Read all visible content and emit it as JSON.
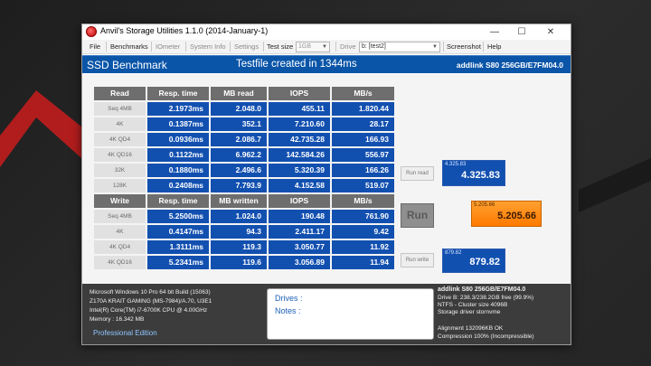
{
  "window": {
    "title": "Anvil's Storage Utilities 1.1.0 (2014-January-1)",
    "controls": {
      "minimize": "—",
      "maximize": "☐",
      "close": "✕"
    }
  },
  "menu": {
    "file": "File",
    "benchmarks": "Benchmarks",
    "iometer": "IOmeter",
    "system_info": "System Info",
    "settings": "Settings",
    "test_size_label": "Test size",
    "test_size_value": "1GB",
    "drive_label": "Drive",
    "drive_value": "b: [test2]",
    "screenshot": "Screenshot",
    "help": "Help"
  },
  "header": {
    "title": "SSD Benchmark",
    "status": "Testfile created in 1344ms",
    "device": "addlink S80 256GB/E7FM04.0"
  },
  "read_table": {
    "headers": [
      "Read",
      "Resp. time",
      "MB read",
      "IOPS",
      "MB/s"
    ],
    "rows": [
      {
        "label": "Seq 4MB",
        "resp": "2.1973ms",
        "mb": "2.048.0",
        "iops": "455.11",
        "mbs": "1.820.44"
      },
      {
        "label": "4K",
        "resp": "0.1387ms",
        "mb": "352.1",
        "iops": "7.210.60",
        "mbs": "28.17"
      },
      {
        "label": "4K QD4",
        "resp": "0.0936ms",
        "mb": "2.086.7",
        "iops": "42.735.28",
        "mbs": "166.93"
      },
      {
        "label": "4K QD16",
        "resp": "0.1122ms",
        "mb": "6.962.2",
        "iops": "142.584.26",
        "mbs": "556.97"
      },
      {
        "label": "32K",
        "resp": "0.1880ms",
        "mb": "2.496.6",
        "iops": "5.320.39",
        "mbs": "166.26"
      },
      {
        "label": "128K",
        "resp": "0.2408ms",
        "mb": "7.793.9",
        "iops": "4.152.58",
        "mbs": "519.07"
      }
    ]
  },
  "write_table": {
    "headers": [
      "Write",
      "Resp. time",
      "MB written",
      "IOPS",
      "MB/s"
    ],
    "rows": [
      {
        "label": "Seq 4MB",
        "resp": "5.2500ms",
        "mb": "1.024.0",
        "iops": "190.48",
        "mbs": "761.90"
      },
      {
        "label": "4K",
        "resp": "0.4147ms",
        "mb": "94.3",
        "iops": "2.411.17",
        "mbs": "9.42"
      },
      {
        "label": "4K QD4",
        "resp": "1.3111ms",
        "mb": "119.3",
        "iops": "3.050.77",
        "mbs": "11.92"
      },
      {
        "label": "4K QD16",
        "resp": "5.2341ms",
        "mb": "119.6",
        "iops": "3.056.89",
        "mbs": "11.94"
      }
    ]
  },
  "buttons": {
    "run_read": "Run read",
    "run": "Run",
    "run_write": "Run write"
  },
  "scores": {
    "read_small": "4.325.83",
    "read": "4.325.83",
    "total_small": "5.205.66",
    "total": "5.205.66",
    "write_small": "879.82",
    "write": "879.82"
  },
  "footer": {
    "system": [
      "Microsoft Windows 10 Pro 64 bit Build (15063)",
      "Z170A KRAIT GAMING (MS-7984)/A.70, U3E1",
      "Intel(R) Core(TM) i7-6700K CPU @ 4.00GHz",
      "Memory : 16.342 MB"
    ],
    "edition": "Professional Edition",
    "drives_label": "Drives :",
    "notes_label": "Notes :",
    "drive_info": [
      "addlink S80 256GB/E7FM04.0",
      "Drive B: 238.3/238.2GB free (99.9%)",
      "NTFS - Cluster size 4096B",
      "Storage driver  stornvme",
      "",
      "Alignment 132096KB OK",
      "Compression 100% (Incompressible)"
    ]
  },
  "colors": {
    "header_blue": "#0a55a8",
    "cell_blue": "#1250b0",
    "score_orange": "#ff8c00"
  }
}
